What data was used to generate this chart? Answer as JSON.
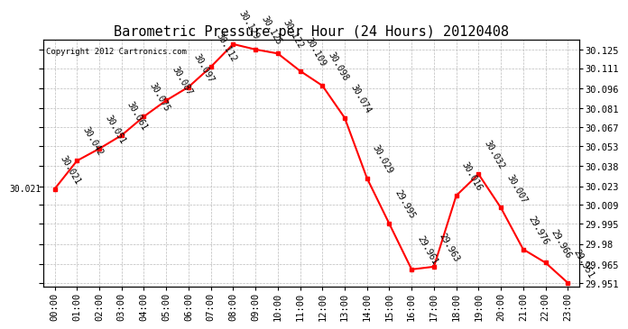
{
  "title": "Barometric Pressure per Hour (24 Hours) 20120408",
  "copyright": "Copyright 2012 Cartronics.com",
  "hours": [
    0,
    1,
    2,
    3,
    4,
    5,
    6,
    7,
    8,
    9,
    10,
    11,
    12,
    13,
    14,
    15,
    16,
    17,
    18,
    19,
    20,
    21,
    22,
    23
  ],
  "x_labels": [
    "00:00",
    "01:00",
    "02:00",
    "03:00",
    "04:00",
    "05:00",
    "06:00",
    "07:00",
    "08:00",
    "09:00",
    "10:00",
    "11:00",
    "12:00",
    "13:00",
    "14:00",
    "15:00",
    "16:00",
    "17:00",
    "18:00",
    "19:00",
    "20:00",
    "21:00",
    "22:00",
    "23:00"
  ],
  "values": [
    30.021,
    30.042,
    30.051,
    30.061,
    30.075,
    30.087,
    30.097,
    30.112,
    30.129,
    30.125,
    30.122,
    30.109,
    30.098,
    30.074,
    30.029,
    29.995,
    29.961,
    29.963,
    30.016,
    30.032,
    30.007,
    29.976,
    29.966,
    29.951
  ],
  "ylim_min": 29.948,
  "ylim_max": 30.132,
  "y_ticks": [
    29.951,
    29.965,
    29.98,
    29.995,
    30.009,
    30.023,
    30.038,
    30.053,
    30.067,
    30.081,
    30.096,
    30.111,
    30.125
  ],
  "line_color": "red",
  "marker_color": "red",
  "bg_color": "white",
  "grid_color": "#bbbbbb",
  "title_fontsize": 11,
  "label_fontsize": 7.5,
  "annot_fontsize": 7,
  "annot_rotation": -60
}
